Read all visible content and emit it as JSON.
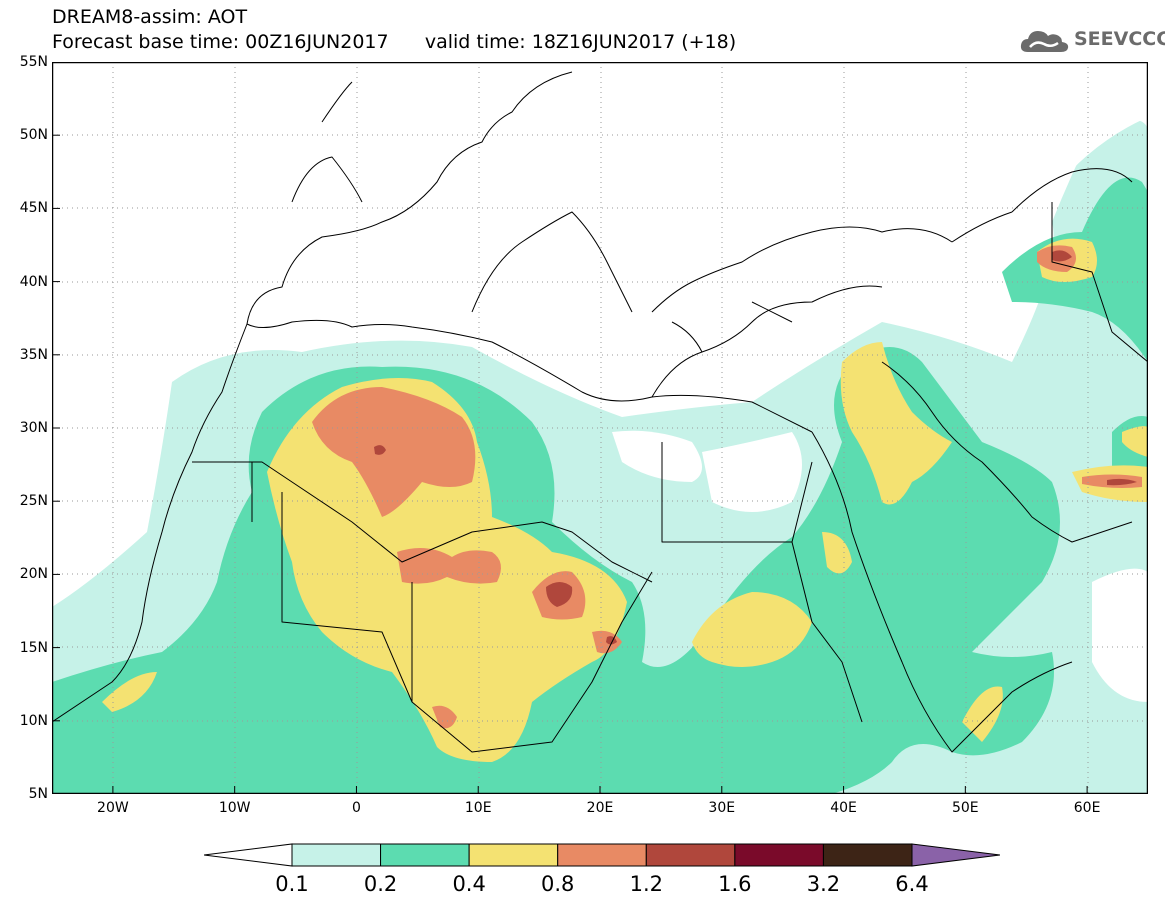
{
  "title": {
    "line1": "DREAM8-assim: AOT",
    "line2": "Forecast base time: 00Z16JUN2017      valid time: 18Z16JUN2017 (+18)"
  },
  "logo": {
    "text": "SEEVCCC",
    "icon": "cloud-icon"
  },
  "map": {
    "projection": "equirectangular",
    "lon_range": [
      -25,
      65
    ],
    "lat_range": [
      5,
      55
    ],
    "gridlines": "dotted",
    "lat_labels": [
      "55N",
      "50N",
      "45N",
      "40N",
      "35N",
      "30N",
      "25N",
      "20N",
      "15N",
      "10N",
      "5N"
    ],
    "lon_labels": [
      "20W",
      "10W",
      "0",
      "10E",
      "20E",
      "30E",
      "40E",
      "50E",
      "60E"
    ]
  },
  "colorbar": {
    "levels": [
      "0.1",
      "0.2",
      "0.4",
      "0.8",
      "1.2",
      "1.6",
      "3.2",
      "6.4"
    ],
    "colors": [
      "#ffffff",
      "#c6f2e8",
      "#5cdcb0",
      "#f4e272",
      "#e88a64",
      "#b0473c",
      "#7a0a2a",
      "#3d2416",
      "#8a62a8"
    ]
  }
}
